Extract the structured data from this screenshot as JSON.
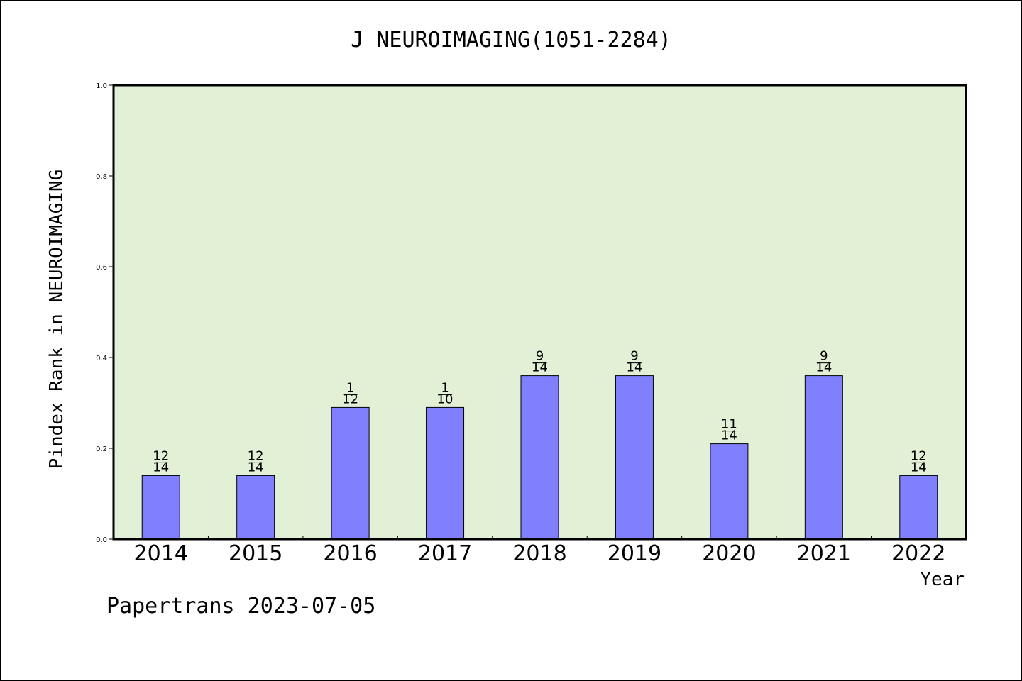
{
  "chart_data": {
    "type": "bar",
    "title": "J NEUROIMAGING(1051-2284)",
    "xlabel": "Year",
    "ylabel": "Pindex Rank in NEUROIMAGING",
    "ylim": [
      0,
      1.0
    ],
    "yticks": [
      "0.0",
      "0.2",
      "0.4",
      "0.6",
      "0.8",
      "1.0"
    ],
    "categories": [
      "2014",
      "2015",
      "2016",
      "2017",
      "2018",
      "2019",
      "2020",
      "2021",
      "2022"
    ],
    "values": [
      0.14,
      0.14,
      0.29,
      0.29,
      0.36,
      0.36,
      0.21,
      0.36,
      0.14
    ],
    "rank_labels": [
      "12",
      "12",
      "1",
      "1",
      "9",
      "9",
      "11",
      "9",
      "12"
    ],
    "total_labels": [
      "14",
      "14",
      "12",
      "10",
      "14",
      "14",
      "14",
      "14",
      "14"
    ],
    "grid": false,
    "colors": {
      "plot_bg": "#e2f0d6",
      "bar": "#8080ff",
      "axis": "#000000"
    }
  },
  "footer": "Papertrans 2023-07-05"
}
